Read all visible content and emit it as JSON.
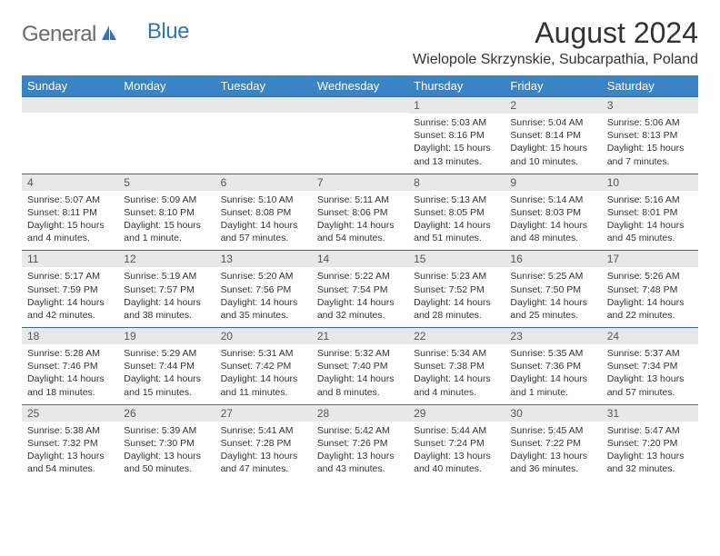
{
  "brand": {
    "general": "General",
    "blue": "Blue"
  },
  "title": "August 2024",
  "location": "Wielopole Skrzynskie, Subcarpathia, Poland",
  "colors": {
    "header_bg": "#3a83c4",
    "header_text": "#ffffff",
    "daynum_bg": "#e8e8e8",
    "cell_border": "#3a6a9a",
    "logo_gray": "#6b6b6b",
    "logo_blue": "#2f76b8",
    "body_text": "#333333"
  },
  "day_names": [
    "Sunday",
    "Monday",
    "Tuesday",
    "Wednesday",
    "Thursday",
    "Friday",
    "Saturday"
  ],
  "weeks": [
    [
      {
        "num": "",
        "lines": []
      },
      {
        "num": "",
        "lines": []
      },
      {
        "num": "",
        "lines": []
      },
      {
        "num": "",
        "lines": []
      },
      {
        "num": "1",
        "lines": [
          "Sunrise: 5:03 AM",
          "Sunset: 8:16 PM",
          "Daylight: 15 hours",
          "and 13 minutes."
        ]
      },
      {
        "num": "2",
        "lines": [
          "Sunrise: 5:04 AM",
          "Sunset: 8:14 PM",
          "Daylight: 15 hours",
          "and 10 minutes."
        ]
      },
      {
        "num": "3",
        "lines": [
          "Sunrise: 5:06 AM",
          "Sunset: 8:13 PM",
          "Daylight: 15 hours",
          "and 7 minutes."
        ]
      }
    ],
    [
      {
        "num": "4",
        "lines": [
          "Sunrise: 5:07 AM",
          "Sunset: 8:11 PM",
          "Daylight: 15 hours",
          "and 4 minutes."
        ]
      },
      {
        "num": "5",
        "lines": [
          "Sunrise: 5:09 AM",
          "Sunset: 8:10 PM",
          "Daylight: 15 hours",
          "and 1 minute."
        ]
      },
      {
        "num": "6",
        "lines": [
          "Sunrise: 5:10 AM",
          "Sunset: 8:08 PM",
          "Daylight: 14 hours",
          "and 57 minutes."
        ]
      },
      {
        "num": "7",
        "lines": [
          "Sunrise: 5:11 AM",
          "Sunset: 8:06 PM",
          "Daylight: 14 hours",
          "and 54 minutes."
        ]
      },
      {
        "num": "8",
        "lines": [
          "Sunrise: 5:13 AM",
          "Sunset: 8:05 PM",
          "Daylight: 14 hours",
          "and 51 minutes."
        ]
      },
      {
        "num": "9",
        "lines": [
          "Sunrise: 5:14 AM",
          "Sunset: 8:03 PM",
          "Daylight: 14 hours",
          "and 48 minutes."
        ]
      },
      {
        "num": "10",
        "lines": [
          "Sunrise: 5:16 AM",
          "Sunset: 8:01 PM",
          "Daylight: 14 hours",
          "and 45 minutes."
        ]
      }
    ],
    [
      {
        "num": "11",
        "lines": [
          "Sunrise: 5:17 AM",
          "Sunset: 7:59 PM",
          "Daylight: 14 hours",
          "and 42 minutes."
        ]
      },
      {
        "num": "12",
        "lines": [
          "Sunrise: 5:19 AM",
          "Sunset: 7:57 PM",
          "Daylight: 14 hours",
          "and 38 minutes."
        ]
      },
      {
        "num": "13",
        "lines": [
          "Sunrise: 5:20 AM",
          "Sunset: 7:56 PM",
          "Daylight: 14 hours",
          "and 35 minutes."
        ]
      },
      {
        "num": "14",
        "lines": [
          "Sunrise: 5:22 AM",
          "Sunset: 7:54 PM",
          "Daylight: 14 hours",
          "and 32 minutes."
        ]
      },
      {
        "num": "15",
        "lines": [
          "Sunrise: 5:23 AM",
          "Sunset: 7:52 PM",
          "Daylight: 14 hours",
          "and 28 minutes."
        ]
      },
      {
        "num": "16",
        "lines": [
          "Sunrise: 5:25 AM",
          "Sunset: 7:50 PM",
          "Daylight: 14 hours",
          "and 25 minutes."
        ]
      },
      {
        "num": "17",
        "lines": [
          "Sunrise: 5:26 AM",
          "Sunset: 7:48 PM",
          "Daylight: 14 hours",
          "and 22 minutes."
        ]
      }
    ],
    [
      {
        "num": "18",
        "lines": [
          "Sunrise: 5:28 AM",
          "Sunset: 7:46 PM",
          "Daylight: 14 hours",
          "and 18 minutes."
        ]
      },
      {
        "num": "19",
        "lines": [
          "Sunrise: 5:29 AM",
          "Sunset: 7:44 PM",
          "Daylight: 14 hours",
          "and 15 minutes."
        ]
      },
      {
        "num": "20",
        "lines": [
          "Sunrise: 5:31 AM",
          "Sunset: 7:42 PM",
          "Daylight: 14 hours",
          "and 11 minutes."
        ]
      },
      {
        "num": "21",
        "lines": [
          "Sunrise: 5:32 AM",
          "Sunset: 7:40 PM",
          "Daylight: 14 hours",
          "and 8 minutes."
        ]
      },
      {
        "num": "22",
        "lines": [
          "Sunrise: 5:34 AM",
          "Sunset: 7:38 PM",
          "Daylight: 14 hours",
          "and 4 minutes."
        ]
      },
      {
        "num": "23",
        "lines": [
          "Sunrise: 5:35 AM",
          "Sunset: 7:36 PM",
          "Daylight: 14 hours",
          "and 1 minute."
        ]
      },
      {
        "num": "24",
        "lines": [
          "Sunrise: 5:37 AM",
          "Sunset: 7:34 PM",
          "Daylight: 13 hours",
          "and 57 minutes."
        ]
      }
    ],
    [
      {
        "num": "25",
        "lines": [
          "Sunrise: 5:38 AM",
          "Sunset: 7:32 PM",
          "Daylight: 13 hours",
          "and 54 minutes."
        ]
      },
      {
        "num": "26",
        "lines": [
          "Sunrise: 5:39 AM",
          "Sunset: 7:30 PM",
          "Daylight: 13 hours",
          "and 50 minutes."
        ]
      },
      {
        "num": "27",
        "lines": [
          "Sunrise: 5:41 AM",
          "Sunset: 7:28 PM",
          "Daylight: 13 hours",
          "and 47 minutes."
        ]
      },
      {
        "num": "28",
        "lines": [
          "Sunrise: 5:42 AM",
          "Sunset: 7:26 PM",
          "Daylight: 13 hours",
          "and 43 minutes."
        ]
      },
      {
        "num": "29",
        "lines": [
          "Sunrise: 5:44 AM",
          "Sunset: 7:24 PM",
          "Daylight: 13 hours",
          "and 40 minutes."
        ]
      },
      {
        "num": "30",
        "lines": [
          "Sunrise: 5:45 AM",
          "Sunset: 7:22 PM",
          "Daylight: 13 hours",
          "and 36 minutes."
        ]
      },
      {
        "num": "31",
        "lines": [
          "Sunrise: 5:47 AM",
          "Sunset: 7:20 PM",
          "Daylight: 13 hours",
          "and 32 minutes."
        ]
      }
    ]
  ]
}
